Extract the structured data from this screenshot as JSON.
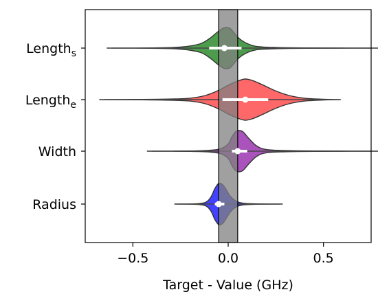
{
  "chart_data": {
    "type": "violin",
    "title": "",
    "xlabel": "Target - Value (GHz)",
    "ylabel": "",
    "xlim": [
      -0.75,
      0.75
    ],
    "x_ticks": [
      -0.5,
      0.0,
      0.5
    ],
    "x_tick_labels": [
      "−0.5",
      "0.0",
      "0.5"
    ],
    "grid": false,
    "legend": "none",
    "reference_band": {
      "from": -0.05,
      "to": 0.05,
      "color": "#808080"
    },
    "categories": [
      {
        "label_base": "Length",
        "label_sub": "s",
        "color": "#2e8b2e",
        "min": -0.61,
        "max": 0.75,
        "q1": -0.1,
        "median": -0.02,
        "q3": 0.07,
        "kde_x": [
          -0.61,
          -0.4,
          -0.25,
          -0.15,
          -0.1,
          -0.06,
          -0.03,
          -0.01,
          0.01,
          0.03,
          0.06,
          0.1,
          0.15,
          0.25,
          0.4,
          0.75
        ],
        "kde_w": [
          0.0,
          0.01,
          0.05,
          0.2,
          0.45,
          0.75,
          0.95,
          1.0,
          0.95,
          0.75,
          0.45,
          0.22,
          0.08,
          0.03,
          0.01,
          0.0
        ]
      },
      {
        "label_base": "Length",
        "label_sub": "e",
        "color": "#ff4d4d",
        "min": -0.65,
        "max": 0.58,
        "q1": -0.03,
        "median": 0.09,
        "q3": 0.21,
        "kde_x": [
          -0.65,
          -0.45,
          -0.3,
          -0.2,
          -0.12,
          -0.05,
          0.0,
          0.05,
          0.09,
          0.13,
          0.18,
          0.25,
          0.32,
          0.4,
          0.5,
          0.58
        ],
        "kde_w": [
          0.0,
          0.01,
          0.03,
          0.07,
          0.2,
          0.45,
          0.7,
          0.9,
          1.0,
          0.92,
          0.72,
          0.42,
          0.2,
          0.07,
          0.02,
          0.0
        ]
      },
      {
        "label_base": "Width",
        "label_sub": "",
        "color": "#9b35b0",
        "min": -0.4,
        "max": 0.75,
        "q1": 0.02,
        "median": 0.05,
        "q3": 0.1,
        "kde_x": [
          -0.4,
          -0.2,
          -0.1,
          -0.04,
          0.0,
          0.02,
          0.04,
          0.06,
          0.08,
          0.11,
          0.15,
          0.2,
          0.3,
          0.45,
          0.75
        ],
        "kde_w": [
          0.0,
          0.01,
          0.04,
          0.12,
          0.35,
          0.7,
          0.95,
          1.0,
          0.92,
          0.6,
          0.25,
          0.08,
          0.03,
          0.01,
          0.0
        ]
      },
      {
        "label_base": "Radius",
        "label_sub": "",
        "color": "#2222ff",
        "min": -0.27,
        "max": 0.27,
        "q1": -0.07,
        "median": -0.05,
        "q3": -0.02,
        "kde_x": [
          -0.27,
          -0.18,
          -0.12,
          -0.09,
          -0.07,
          -0.05,
          -0.03,
          -0.01,
          0.01,
          0.04,
          0.08,
          0.15,
          0.27
        ],
        "kde_w": [
          0.0,
          0.01,
          0.08,
          0.35,
          0.75,
          1.0,
          0.95,
          0.7,
          0.4,
          0.15,
          0.04,
          0.01,
          0.0
        ]
      }
    ]
  }
}
